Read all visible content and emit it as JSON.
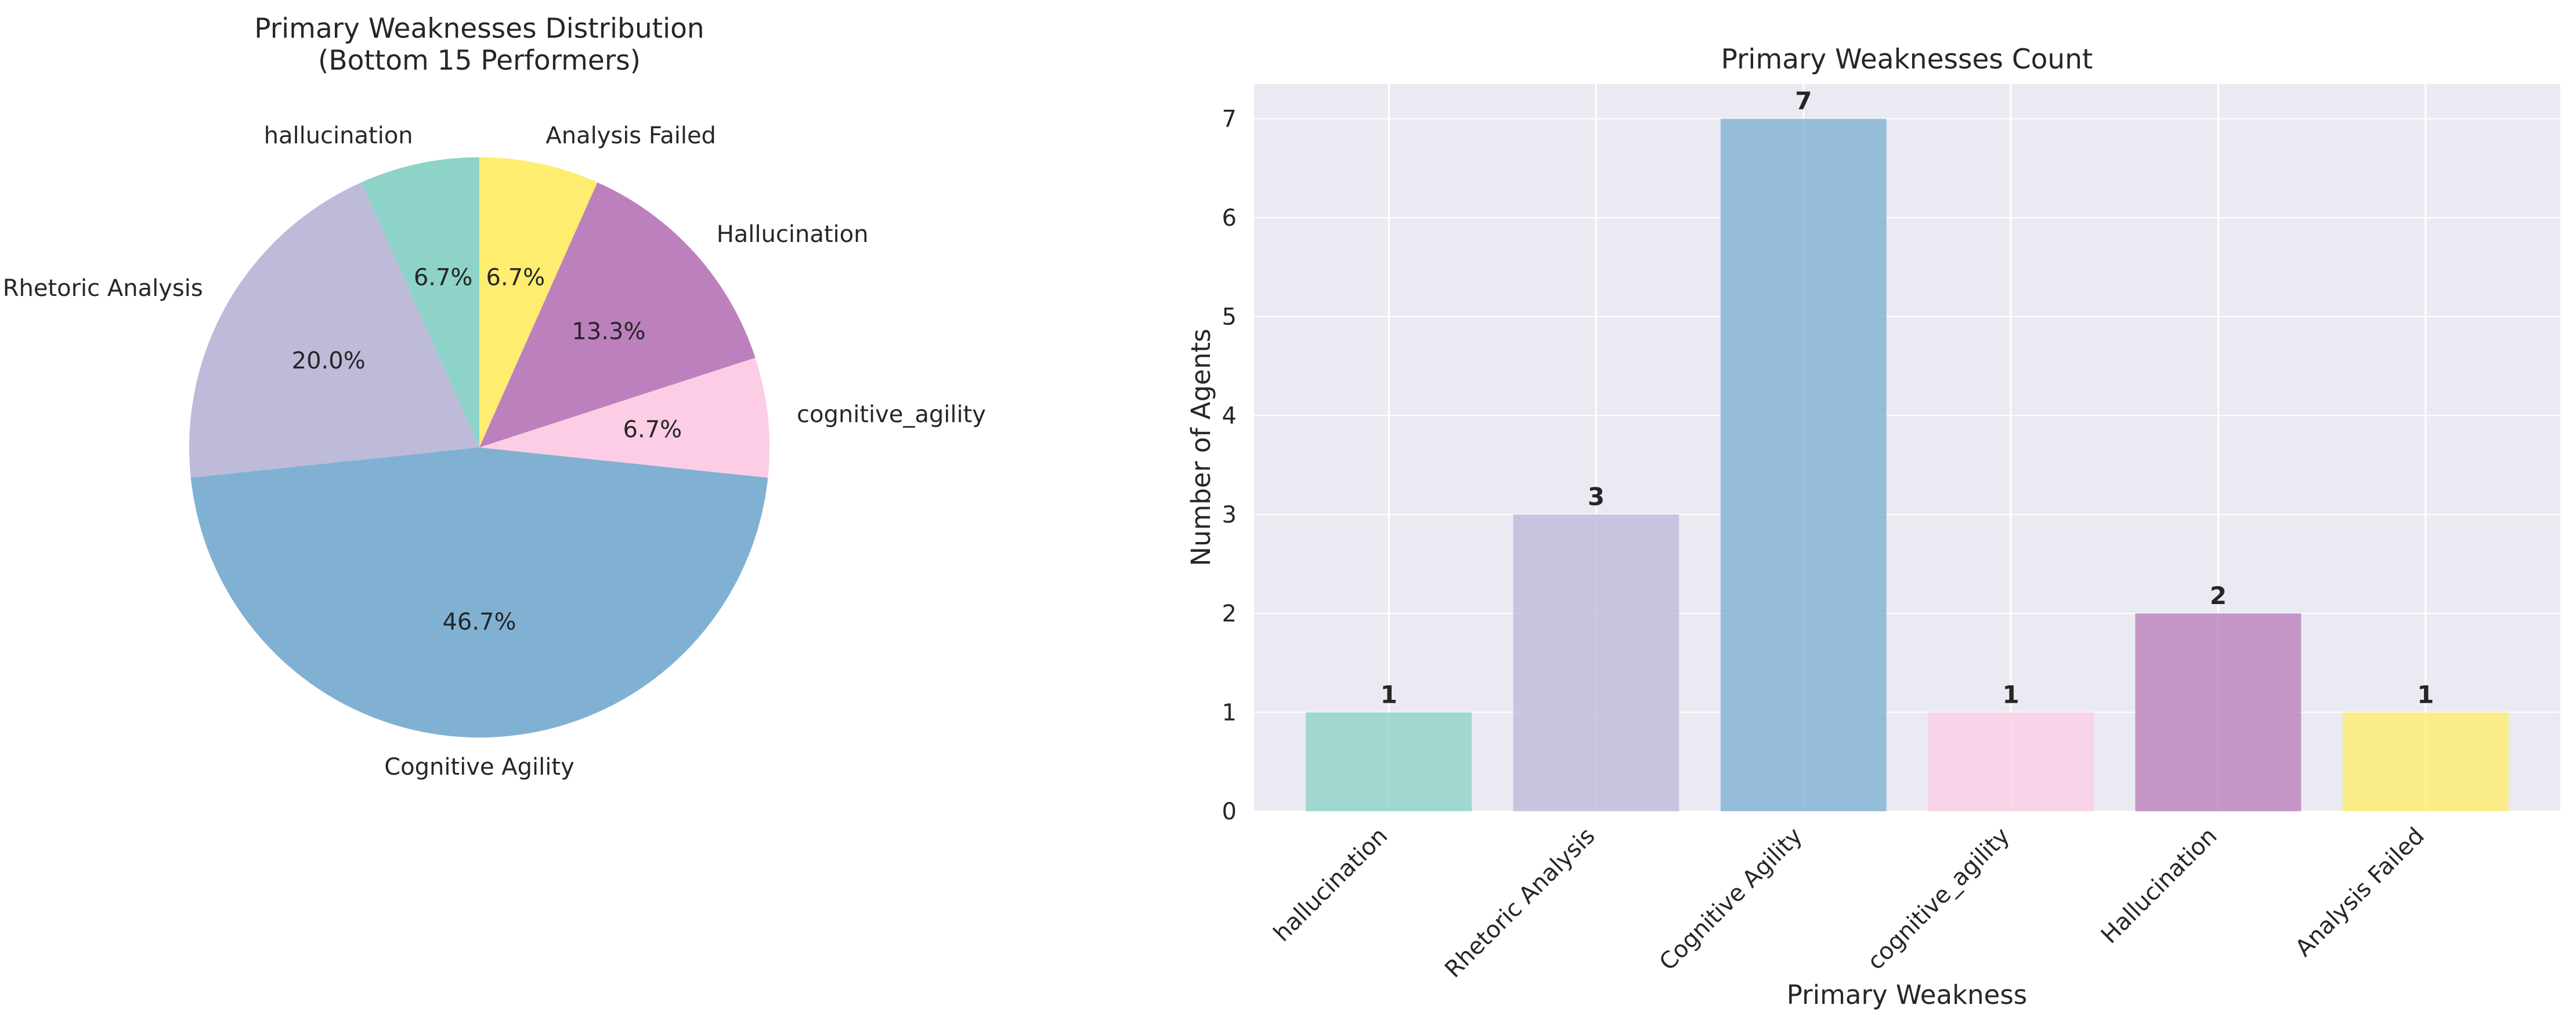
{
  "chart_data": [
    {
      "type": "pie",
      "title_line1": "Primary Weaknesses Distribution",
      "title_line2": "(Bottom 15 Performers)",
      "slices": [
        {
          "label": "hallucination",
          "value": 1,
          "pct": "6.7%",
          "color": "#8dd3c7"
        },
        {
          "label": "Rhetoric Analysis",
          "value": 3,
          "pct": "20.0%",
          "color": "#bebada"
        },
        {
          "label": "Cognitive Agility",
          "value": 7,
          "pct": "46.7%",
          "color": "#80b1d3"
        },
        {
          "label": "cognitive_agility",
          "value": 1,
          "pct": "6.7%",
          "color": "#fccde5"
        },
        {
          "label": "Hallucination",
          "value": 2,
          "pct": "13.3%",
          "color": "#bc80bd"
        },
        {
          "label": "Analysis Failed",
          "value": 1,
          "pct": "6.7%",
          "color": "#ffed6f"
        }
      ],
      "start_angle": 90,
      "direction": "counterclockwise"
    },
    {
      "type": "bar",
      "title": "Primary Weaknesses Count",
      "xlabel": "Primary Weakness",
      "ylabel": "Number of Agents",
      "categories": [
        "hallucination",
        "Rhetoric Analysis",
        "Cognitive Agility",
        "cognitive_agility",
        "Hallucination",
        "Analysis Failed"
      ],
      "values": [
        1,
        3,
        7,
        1,
        2,
        1
      ],
      "value_labels": [
        "1",
        "3",
        "7",
        "1",
        "2",
        "1"
      ],
      "colors": [
        "#8dd3c7",
        "#bebada",
        "#80b1d3",
        "#fccde5",
        "#bc80bd",
        "#ffed6f"
      ],
      "ylim": [
        0,
        7.35
      ],
      "yticks": [
        "0",
        "1",
        "2",
        "3",
        "4",
        "5",
        "6",
        "7"
      ],
      "grid": true,
      "background": "#eaeaf2"
    }
  ]
}
